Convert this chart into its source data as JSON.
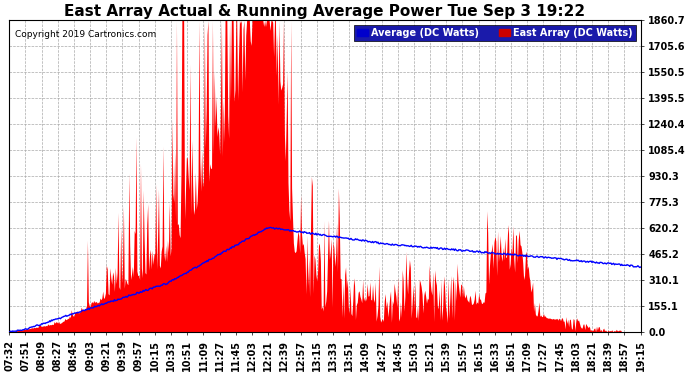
{
  "title": "East Array Actual & Running Average Power Tue Sep 3 19:22",
  "copyright": "Copyright 2019 Cartronics.com",
  "legend_avg": "Average (DC Watts)",
  "legend_east": "East Array (DC Watts)",
  "y_ticks": [
    0.0,
    155.1,
    310.1,
    465.2,
    620.2,
    775.3,
    930.3,
    1085.4,
    1240.4,
    1395.5,
    1550.5,
    1705.6,
    1860.7
  ],
  "y_max": 1860.7,
  "x_labels": [
    "07:32",
    "07:51",
    "08:09",
    "08:27",
    "08:45",
    "09:03",
    "09:21",
    "09:39",
    "09:57",
    "10:15",
    "10:33",
    "10:51",
    "11:09",
    "11:27",
    "11:45",
    "12:03",
    "12:21",
    "12:39",
    "12:57",
    "13:15",
    "13:33",
    "13:51",
    "14:09",
    "14:27",
    "14:45",
    "15:03",
    "15:21",
    "15:39",
    "15:57",
    "16:15",
    "16:33",
    "16:51",
    "17:09",
    "17:27",
    "17:45",
    "18:03",
    "18:21",
    "18:39",
    "18:57",
    "19:15"
  ],
  "background_color": "#ffffff",
  "plot_bg_color": "#ffffff",
  "grid_color": "#aaaaaa",
  "red_fill_color": "#ff0000",
  "blue_line_color": "#0000ff",
  "title_fontsize": 11,
  "tick_fontsize": 7,
  "legend_bg_avg": "#0000cc",
  "legend_bg_east": "#cc0000"
}
